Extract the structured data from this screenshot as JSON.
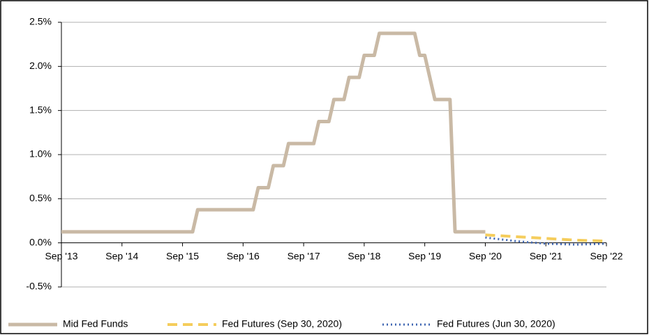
{
  "chart_data": {
    "type": "line",
    "xlim": [
      0,
      108
    ],
    "xticks": [
      {
        "value": 0,
        "label": "Sep '13"
      },
      {
        "value": 12,
        "label": "Sep '14"
      },
      {
        "value": 24,
        "label": "Sep '15"
      },
      {
        "value": 36,
        "label": "Sep '16"
      },
      {
        "value": 48,
        "label": "Sep '17"
      },
      {
        "value": 60,
        "label": "Sep '18"
      },
      {
        "value": 72,
        "label": "Sep '19"
      },
      {
        "value": 84,
        "label": "Sep '20"
      },
      {
        "value": 96,
        "label": "Sep '21"
      },
      {
        "value": 108,
        "label": "Sep '22"
      }
    ],
    "ylim": [
      -0.5,
      2.5
    ],
    "yticks": [
      {
        "value": -0.5,
        "label": "-0.5%"
      },
      {
        "value": 0,
        "label": "0.0%"
      },
      {
        "value": 0.5,
        "label": "0.5%"
      },
      {
        "value": 1,
        "label": "1.0%"
      },
      {
        "value": 1.5,
        "label": "1.5%"
      },
      {
        "value": 2,
        "label": "2.0%"
      },
      {
        "value": 2.5,
        "label": "2.5%"
      }
    ],
    "grid": true,
    "legend": "bottom",
    "series": [
      {
        "name": "Mid Fed Funds",
        "color": "#c9b9a5",
        "style": "solid",
        "x": [
          0,
          26,
          27,
          38,
          39,
          41,
          42,
          44,
          45,
          50,
          51,
          53,
          54,
          56,
          57,
          59,
          60,
          62,
          63,
          70,
          71,
          72,
          73,
          74,
          77,
          78,
          84
        ],
        "values": [
          0.125,
          0.125,
          0.375,
          0.375,
          0.625,
          0.625,
          0.875,
          0.875,
          1.125,
          1.125,
          1.375,
          1.375,
          1.625,
          1.625,
          1.875,
          1.875,
          2.125,
          2.125,
          2.375,
          2.375,
          2.125,
          2.125,
          1.875,
          1.625,
          1.625,
          0.125,
          0.125
        ]
      },
      {
        "name": "Fed Futures (Sep 30, 2020)",
        "color": "#f5cd5c",
        "style": "dashed",
        "x": [
          84,
          90,
          96,
          102,
          108
        ],
        "values": [
          0.09,
          0.07,
          0.05,
          0.03,
          0.02
        ]
      },
      {
        "name": "Fed Futures (Jun 30, 2020)",
        "color": "#3f66b2",
        "style": "dotted",
        "x": [
          84,
          90,
          96,
          102,
          108
        ],
        "values": [
          0.06,
          0.02,
          -0.01,
          -0.02,
          -0.01
        ]
      }
    ]
  }
}
